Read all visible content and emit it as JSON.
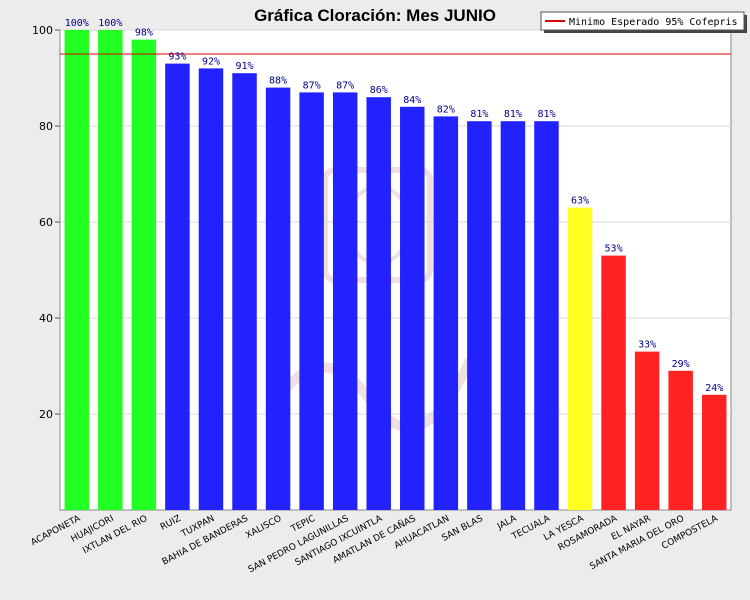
{
  "chart_data": {
    "type": "bar",
    "title": "Gráfica Cloración: Mes JUNIO",
    "xlabel": "",
    "ylabel": "",
    "ylim": [
      0,
      100
    ],
    "yticks": [
      20,
      40,
      60,
      80,
      100
    ],
    "grid": true,
    "legend_position": "top-right",
    "categories": [
      "ACAPONETA",
      "HUAJICORI",
      "IXTLAN DEL RIO",
      "RUIZ",
      "TUXPAN",
      "BAHIA DE BANDERAS",
      "XALISCO",
      "TEPIC",
      "SAN PEDRO LAGUNILLAS",
      "SANTIAGO IXCUINTLA",
      "AMATLAN DE CAÑAS",
      "AHUACATLAN",
      "SAN BLAS",
      "JALA",
      "TECUALA",
      "LA YESCA",
      "ROSAMORADA",
      "EL NAYAR",
      "SANTA MARIA DEL ORO",
      "COMPOSTELA"
    ],
    "values": [
      100,
      100,
      98,
      93,
      92,
      91,
      88,
      87,
      87,
      86,
      84,
      82,
      81,
      81,
      81,
      63,
      53,
      33,
      29,
      24
    ],
    "value_labels": [
      "100%",
      "100%",
      "98%",
      "93%",
      "92%",
      "91%",
      "88%",
      "87%",
      "87%",
      "86%",
      "84%",
      "82%",
      "81%",
      "81%",
      "81%",
      "63%",
      "53%",
      "33%",
      "29%",
      "24%"
    ],
    "bar_colors": [
      "#22ff22",
      "#22ff22",
      "#22ff22",
      "#2222ff",
      "#2222ff",
      "#2222ff",
      "#2222ff",
      "#2222ff",
      "#2222ff",
      "#2222ff",
      "#2222ff",
      "#2222ff",
      "#2222ff",
      "#2222ff",
      "#2222ff",
      "#ffff22",
      "#ff2222",
      "#ff2222",
      "#ff2222",
      "#ff2222"
    ],
    "reference_line": {
      "value": 95,
      "label": "Minimo Esperado 95% Cofepris",
      "color": "#dd0000"
    }
  }
}
